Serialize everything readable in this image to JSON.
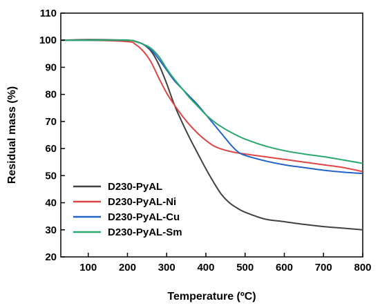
{
  "chart_data": {
    "type": "line",
    "title": "",
    "xlabel": "Temperature (ºC)",
    "ylabel": "Residual mass (%)",
    "xlim": [
      30,
      800
    ],
    "ylim": [
      20,
      110
    ],
    "xticks": [
      100,
      200,
      300,
      400,
      500,
      600,
      700,
      800
    ],
    "yticks": [
      20,
      30,
      40,
      50,
      60,
      70,
      80,
      90,
      100,
      110
    ],
    "grid": false,
    "legend_position": "bottom-left",
    "series": [
      {
        "name": "D230-PyAL",
        "color": "#404040",
        "x": [
          30,
          100,
          200,
          220,
          240,
          260,
          280,
          300,
          320,
          340,
          360,
          380,
          400,
          420,
          440,
          460,
          480,
          500,
          550,
          600,
          650,
          700,
          750,
          800
        ],
        "y": [
          100,
          100.2,
          100,
          99.6,
          98.5,
          96,
          91,
          84,
          76,
          69.5,
          63.5,
          58,
          52.5,
          47.5,
          43,
          40,
          38,
          36.5,
          34,
          33,
          32,
          31.2,
          30.6,
          30
        ]
      },
      {
        "name": "D230-PyAL-Ni",
        "color": "#e04545",
        "x": [
          30,
          100,
          200,
          220,
          240,
          260,
          280,
          300,
          320,
          340,
          360,
          380,
          400,
          420,
          440,
          460,
          480,
          500,
          550,
          600,
          650,
          700,
          750,
          800
        ],
        "y": [
          100,
          100,
          99.5,
          98.5,
          96,
          92,
          86,
          80.5,
          76,
          72,
          68.5,
          65.5,
          63,
          61,
          59.8,
          59,
          58.4,
          58,
          57,
          56,
          55,
          54,
          53,
          51.5
        ]
      },
      {
        "name": "D230-PyAL-Cu",
        "color": "#2462c8",
        "x": [
          30,
          100,
          200,
          220,
          240,
          260,
          280,
          300,
          320,
          340,
          360,
          380,
          400,
          420,
          440,
          460,
          480,
          500,
          550,
          600,
          650,
          700,
          750,
          800
        ],
        "y": [
          100,
          100,
          100,
          99.5,
          98.5,
          96.5,
          93,
          89,
          85,
          82,
          79,
          76,
          72.5,
          69,
          65.5,
          62,
          59,
          57.5,
          55.5,
          54,
          53,
          52,
          51.3,
          50.8
        ]
      },
      {
        "name": "D230-PyAL-Sm",
        "color": "#28a86a",
        "x": [
          30,
          100,
          200,
          220,
          240,
          260,
          280,
          300,
          320,
          340,
          360,
          380,
          400,
          420,
          440,
          460,
          480,
          500,
          550,
          600,
          650,
          700,
          750,
          800
        ],
        "y": [
          100,
          100,
          100,
          99.5,
          98.5,
          97,
          94,
          89.5,
          85.5,
          82,
          78.5,
          75.5,
          72.5,
          70,
          68,
          66.3,
          64.8,
          63.5,
          61,
          59.2,
          58,
          57,
          55.8,
          54.5
        ]
      }
    ]
  }
}
